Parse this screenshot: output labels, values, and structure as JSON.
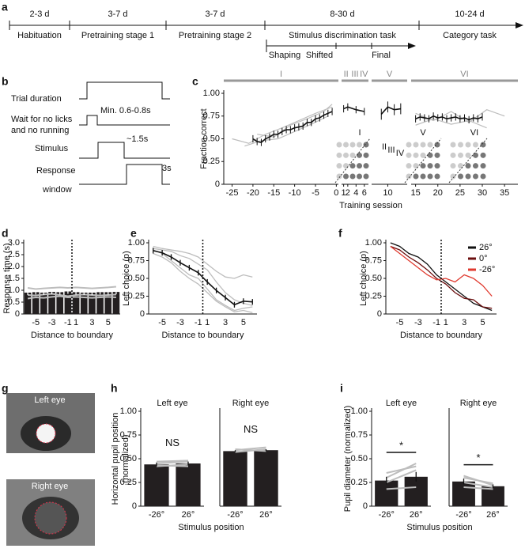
{
  "panel_labels": [
    "a",
    "b",
    "c",
    "d",
    "e",
    "f",
    "g",
    "h",
    "i"
  ],
  "timeline": {
    "durations": [
      "2-3 d",
      "3-7 d",
      "3-7 d",
      "8-30 d",
      "10-24 d"
    ],
    "stages": [
      "Habituation",
      "Pretraining stage 1",
      "Pretraining stage 2",
      "Stimulus discrimination task",
      "Category task"
    ],
    "substages": [
      "Shaping",
      "Shifted",
      "Final"
    ]
  },
  "trial_diagram": {
    "rows": [
      [
        "Trial duration"
      ],
      [
        "Wait for no licks",
        "and no running"
      ],
      [
        "Stimulus"
      ],
      [
        "Response",
        "window"
      ]
    ],
    "annotations": [
      "Min. 0.6-0.8s",
      "~1.5s",
      "3s"
    ]
  },
  "eye_images": {
    "labels": [
      "Left eye",
      "Right eye"
    ]
  },
  "chart_data": [
    {
      "type": "line",
      "xlabel": "Training session",
      "ylabel": [
        "Fraction correct"
      ],
      "ylim": [
        0,
        1
      ],
      "yticks": [
        0,
        0.25,
        {
          "value": 0.5,
          "label": "0.50"
        },
        0.75,
        {
          "value": 1,
          "label": "1.00"
        }
      ],
      "segments": [
        {
          "labels": [
            "I"
          ],
          "xlim": [
            -27,
            0.5
          ],
          "xticks": [
            -25,
            -20,
            -15,
            -10,
            -5,
            0
          ]
        },
        {
          "labels": [
            "II",
            "III",
            "IV"
          ],
          "xlim": [
            0.5,
            7
          ],
          "xticks": [
            1,
            2,
            4,
            6
          ]
        },
        {
          "labels": [
            "V"
          ],
          "xlim": [
            7.5,
            13
          ],
          "xticks": [
            10
          ]
        },
        {
          "labels": [
            "VI"
          ],
          "xlim": [
            14,
            38
          ],
          "xticks": [
            15,
            20,
            25,
            30,
            35
          ]
        }
      ],
      "series": [
        {
          "color": "#bdbdbd",
          "x": [
            -25,
            -21,
            -17,
            -13,
            -9,
            -5,
            -1
          ],
          "values": [
            0.5,
            0.45,
            0.55,
            0.62,
            0.7,
            0.78,
            0.85
          ]
        },
        {
          "color": "#bdbdbd",
          "x": [
            -22,
            -18,
            -14,
            -10,
            -6,
            -2
          ],
          "values": [
            0.42,
            0.48,
            0.5,
            0.58,
            0.66,
            0.75
          ]
        },
        {
          "color": "#bdbdbd",
          "x": [
            -19,
            -15,
            -11,
            -7,
            -3,
            -1
          ],
          "values": [
            0.55,
            0.52,
            0.65,
            0.72,
            0.8,
            0.88
          ]
        },
        {
          "color": "#bdbdbd",
          "x": [
            15,
            19,
            23,
            27,
            31,
            35
          ],
          "values": [
            0.78,
            0.7,
            0.8,
            0.68,
            0.82,
            0.75
          ]
        },
        {
          "color": "#bdbdbd",
          "x": [
            15,
            19,
            23,
            27,
            31
          ],
          "values": [
            0.65,
            0.72,
            0.66,
            0.7,
            0.62
          ]
        },
        {
          "color": "#111111",
          "x": [
            -20,
            -19,
            -18,
            -17,
            -16,
            -15,
            -14,
            -13,
            -12,
            -11,
            -10,
            -9,
            -8,
            -7,
            -6,
            -5,
            -4,
            -3,
            -2,
            -1
          ],
          "values": [
            0.5,
            0.47,
            0.46,
            0.5,
            0.52,
            0.55,
            0.55,
            0.58,
            0.6,
            0.6,
            0.62,
            0.63,
            0.64,
            0.68,
            0.68,
            0.72,
            0.73,
            0.76,
            0.78,
            0.8
          ],
          "errors": [
            0.04,
            0.04,
            0.04,
            0.04,
            0.04,
            0.04,
            0.04,
            0.04,
            0.04,
            0.04,
            0.04,
            0.04,
            0.04,
            0.04,
            0.04,
            0.04,
            0.04,
            0.04,
            0.04,
            0.04
          ]
        },
        {
          "color": "#111111",
          "x": [
            1,
            2,
            4,
            6
          ],
          "values": [
            0.83,
            0.85,
            0.82,
            0.8
          ],
          "errors": [
            0.04,
            0.04,
            0.04,
            0.04
          ]
        },
        {
          "color": "#111111",
          "x": [
            9,
            10,
            11,
            12
          ],
          "values": [
            0.77,
            0.85,
            0.82,
            0.83
          ],
          "errors": [
            0.06,
            0.06,
            0.06,
            0.06
          ]
        },
        {
          "color": "#111111",
          "x": [
            15,
            16,
            17,
            18,
            19,
            20,
            21,
            22,
            23,
            24,
            25,
            26,
            27,
            28,
            29,
            30
          ],
          "values": [
            0.72,
            0.74,
            0.73,
            0.72,
            0.75,
            0.73,
            0.74,
            0.72,
            0.73,
            0.74,
            0.72,
            0.73,
            0.71,
            0.73,
            0.72,
            0.74
          ],
          "errors": [
            0.04,
            0.04,
            0.04,
            0.04,
            0.04,
            0.04,
            0.04,
            0.04,
            0.04,
            0.04,
            0.04,
            0.04,
            0.04,
            0.04,
            0.04,
            0.04
          ]
        }
      ]
    },
    {
      "type": "bar",
      "xlabel": "Distance to boundary",
      "ylabel": [
        "Response time (s)"
      ],
      "ylim": [
        0,
        3
      ],
      "boundary": true,
      "color": "#231f20",
      "yticks": [
        0,
        0.5,
        {
          "value": 1,
          "label": "1.0"
        },
        1.5,
        {
          "value": 2,
          "label": "2.0"
        },
        2.5,
        {
          "value": 3,
          "label": "3.0"
        }
      ],
      "categories": [
        null,
        "-5",
        null,
        "-3",
        null,
        "-1",
        "1",
        null,
        "3",
        null,
        "5",
        null
      ],
      "values": [
        0.9,
        0.92,
        0.9,
        0.93,
        0.92,
        0.95,
        0.92,
        0.9,
        0.9,
        0.92,
        0.92,
        0.93
      ],
      "errors": [
        0.1,
        0.1,
        0.1,
        0.1,
        0.1,
        0.1,
        0.1,
        0.1,
        0.1,
        0.1,
        0.1,
        0.1
      ],
      "lines": [
        {
          "color": "#bdbdbd",
          "values": [
            1.1,
            1.05,
            1.08,
            1.1,
            1.12,
            1.1,
            1.12,
            1.1,
            1.08,
            1.1,
            1.12,
            1.15
          ]
        },
        {
          "color": "#bdbdbd",
          "values": [
            0.8,
            0.78,
            0.82,
            0.85,
            0.8,
            0.75,
            0.8,
            0.82,
            0.8,
            0.78,
            0.8,
            0.82
          ]
        },
        {
          "color": "#bdbdbd",
          "values": [
            0.65,
            0.7,
            0.68,
            0.72,
            0.75,
            0.7,
            0.72,
            0.7,
            0.68,
            0.7,
            0.72,
            0.7
          ]
        }
      ]
    },
    {
      "type": "line",
      "xlabel": "Distance to boundary",
      "ylabel": [
        "Left choice (p)"
      ],
      "ylim": [
        0,
        1
      ],
      "boundary": true,
      "yticks": [
        0,
        0.25,
        {
          "value": 0.5,
          "label": "0.50"
        },
        0.75,
        {
          "value": 1,
          "label": "1.00"
        }
      ],
      "categories": [
        null,
        "-5",
        null,
        "-3",
        null,
        "-1",
        "1",
        null,
        "3",
        null,
        "5",
        null
      ],
      "series": [
        {
          "color": "#bdbdbd",
          "values": [
            0.95,
            0.92,
            0.9,
            0.88,
            0.85,
            0.8,
            0.7,
            0.6,
            0.52,
            0.5,
            0.55,
            0.52
          ]
        },
        {
          "color": "#bdbdbd",
          "values": [
            0.9,
            0.85,
            0.75,
            0.65,
            0.55,
            0.5,
            0.35,
            0.2,
            0.12,
            0.05,
            0.08,
            0.1
          ]
        },
        {
          "color": "#bdbdbd",
          "values": [
            0.85,
            0.8,
            0.72,
            0.6,
            0.5,
            0.42,
            0.3,
            0.18,
            0.1,
            0.03,
            0.05,
            0.02
          ]
        },
        {
          "color": "#bdbdbd",
          "values": [
            0.92,
            0.9,
            0.88,
            0.82,
            0.78,
            0.7,
            0.62,
            0.45,
            0.3,
            0.2,
            0.15,
            0.12
          ]
        },
        {
          "color": "#111111",
          "values": [
            0.89,
            0.86,
            0.8,
            0.72,
            0.65,
            0.58,
            0.45,
            0.33,
            0.23,
            0.13,
            0.18,
            0.17
          ],
          "errors": [
            0.04,
            0.04,
            0.04,
            0.04,
            0.04,
            0.04,
            0.04,
            0.04,
            0.04,
            0.04,
            0.04,
            0.04
          ]
        }
      ]
    },
    {
      "type": "line",
      "xlabel": "Distance to boundary",
      "ylabel": [
        "Left choice (p)"
      ],
      "ylim": [
        0,
        1
      ],
      "boundary": true,
      "legend": "upper right",
      "yticks": [
        0,
        0.25,
        {
          "value": 0.5,
          "label": "0.50"
        },
        0.75,
        {
          "value": 1,
          "label": "1.00"
        }
      ],
      "categories": [
        null,
        "-5",
        null,
        "-3",
        null,
        "-1",
        "1",
        null,
        "3",
        null,
        "5",
        null
      ],
      "series": [
        {
          "name": "26°",
          "color": "#111111",
          "values": [
            1,
            0.95,
            0.85,
            0.8,
            0.7,
            0.55,
            0.45,
            0.35,
            0.25,
            0.15,
            0.1,
            0.05
          ]
        },
        {
          "name": "0°",
          "color": "#6b0f0f",
          "values": [
            0.95,
            0.9,
            0.8,
            0.72,
            0.62,
            0.5,
            0.42,
            0.3,
            0.22,
            0.2,
            0.1,
            0.08
          ]
        },
        {
          "name": "-26°",
          "color": "#e03a2f",
          "values": [
            0.95,
            0.85,
            0.75,
            0.65,
            0.55,
            0.48,
            0.5,
            0.45,
            0.55,
            0.5,
            0.4,
            0.25
          ]
        }
      ]
    },
    {
      "type": "bar",
      "title": "Left eye",
      "xlabel": "Stimulus position",
      "ylabel": [
        "Horizontal pupil position",
        "(normalized)"
      ],
      "ylim": [
        0,
        1
      ],
      "color": "#231f20",
      "yticks": [
        0,
        0.25,
        {
          "value": 0.5,
          "label": "0.50"
        },
        0.75,
        {
          "value": 1,
          "label": "1.00"
        }
      ],
      "categories": [
        "-26°",
        "26°"
      ],
      "values": [
        0.44,
        0.45
      ],
      "errors": [
        0.02,
        0.02
      ],
      "annotation": "NS",
      "lines": [
        {
          "color": "#bdbdbd",
          "values": [
            0.42,
            0.44
          ]
        },
        {
          "color": "#bdbdbd",
          "values": [
            0.45,
            0.47
          ]
        },
        {
          "color": "#bdbdbd",
          "values": [
            0.47,
            0.48
          ]
        },
        {
          "color": "#bdbdbd",
          "values": [
            0.43,
            0.42
          ]
        }
      ]
    },
    {
      "type": "bar",
      "title": "Right eye",
      "ylim": [
        0,
        1
      ],
      "color": "#231f20",
      "categories": [
        "-26°",
        "26°"
      ],
      "values": [
        0.58,
        0.59
      ],
      "errors": [
        0.01,
        0.01
      ],
      "annotation": "NS",
      "lines": [
        {
          "color": "#bdbdbd",
          "values": [
            0.57,
            0.6
          ]
        },
        {
          "color": "#bdbdbd",
          "values": [
            0.59,
            0.62
          ]
        },
        {
          "color": "#bdbdbd",
          "values": [
            0.6,
            0.58
          ]
        }
      ]
    },
    {
      "type": "bar",
      "title": "Left eye",
      "xlabel": "Stimulus position",
      "ylabel": [
        "Pupil diameter (normalized)"
      ],
      "ylim": [
        0,
        1
      ],
      "color": "#231f20",
      "yticks": [
        0,
        0.25,
        {
          "value": 0.5,
          "label": "0.50"
        },
        0.75,
        {
          "value": 1,
          "label": "1.00"
        }
      ],
      "categories": [
        "-26°",
        "26°"
      ],
      "values": [
        0.27,
        0.31
      ],
      "errors": [
        0.04,
        0.05
      ],
      "annotation": "*",
      "significance_bar": true,
      "lines": [
        {
          "color": "#bdbdbd",
          "values": [
            0.18,
            0.2
          ]
        },
        {
          "color": "#bdbdbd",
          "values": [
            0.25,
            0.38
          ]
        },
        {
          "color": "#bdbdbd",
          "values": [
            0.3,
            0.45
          ]
        },
        {
          "color": "#bdbdbd",
          "values": [
            0.35,
            0.42
          ]
        }
      ]
    },
    {
      "type": "bar",
      "title": "Right eye",
      "ylim": [
        0,
        1
      ],
      "color": "#231f20",
      "categories": [
        "-26°",
        "26°"
      ],
      "values": [
        0.26,
        0.21
      ],
      "errors": [
        0.03,
        0.02
      ],
      "annotation": "*",
      "significance_bar": true,
      "lines": [
        {
          "color": "#bdbdbd",
          "values": [
            0.3,
            0.24
          ]
        },
        {
          "color": "#bdbdbd",
          "values": [
            0.25,
            0.2
          ]
        },
        {
          "color": "#bdbdbd",
          "values": [
            0.2,
            0.18
          ]
        },
        {
          "color": "#bdbdbd",
          "values": [
            0.32,
            0.22
          ]
        }
      ]
    }
  ]
}
